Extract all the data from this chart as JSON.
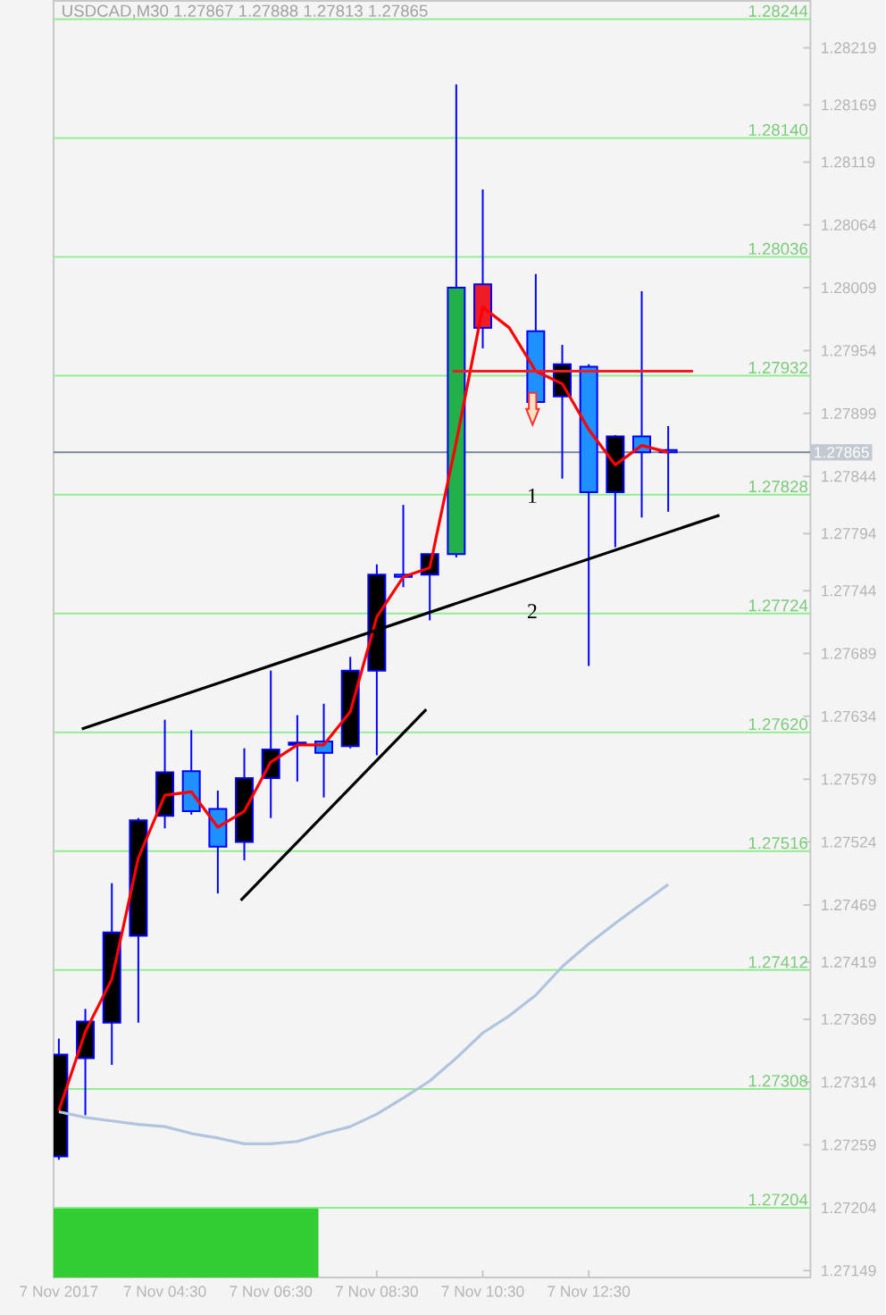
{
  "chart_data": {
    "type": "candlestick",
    "title": "USDCAD,M30  1.27867 1.27888 1.27813 1.27865",
    "x": [
      "2017-11-07T02:30",
      "2017-11-07T03:00",
      "2017-11-07T03:30",
      "2017-11-07T04:00",
      "2017-11-07T04:30",
      "2017-11-07T05:00",
      "2017-11-07T05:30",
      "2017-11-07T06:00",
      "2017-11-07T06:30",
      "2017-11-07T07:00",
      "2017-11-07T07:30",
      "2017-11-07T08:00",
      "2017-11-07T08:30",
      "2017-11-07T09:00",
      "2017-11-07T09:30",
      "2017-11-07T10:00",
      "2017-11-07T10:30",
      "2017-11-07T11:00",
      "2017-11-07T11:30",
      "2017-11-07T12:00",
      "2017-11-07T12:30",
      "2017-11-07T13:00",
      "2017-11-07T13:30",
      "2017-11-07T14:00"
    ],
    "ohlc": [
      [
        1.27249,
        1.27352,
        1.27246,
        1.27338
      ],
      [
        1.27335,
        1.27378,
        1.27285,
        1.27367
      ],
      [
        1.27366,
        1.27488,
        1.27329,
        1.27445
      ],
      [
        1.27442,
        1.27545,
        1.27366,
        1.27543
      ],
      [
        1.27547,
        1.27631,
        1.27536,
        1.27585
      ],
      [
        1.27586,
        1.27622,
        1.27548,
        1.27551
      ],
      [
        1.27553,
        1.27569,
        1.27479,
        1.2752
      ],
      [
        1.27524,
        1.27606,
        1.27508,
        1.2758
      ],
      [
        1.2758,
        1.27674,
        1.27545,
        1.27605
      ],
      [
        1.27609,
        1.27635,
        1.27577,
        1.27611
      ],
      [
        1.27612,
        1.27645,
        1.27563,
        1.27602
      ],
      [
        1.27608,
        1.27686,
        1.27606,
        1.27674
      ],
      [
        1.27674,
        1.27767,
        1.276,
        1.27758
      ],
      [
        1.27758,
        1.27819,
        1.27747,
        1.27756
      ],
      [
        1.27758,
        1.27776,
        1.27718,
        1.27776
      ],
      [
        1.27776,
        1.28187,
        1.27773,
        1.28009
      ],
      [
        1.28012,
        1.28095,
        1.27956,
        1.27974
      ],
      null,
      [
        1.27971,
        1.28021,
        1.27907,
        1.27909
      ],
      [
        1.27914,
        1.27959,
        1.27842,
        1.27942
      ],
      [
        1.2794,
        1.27942,
        1.27678,
        1.2783
      ],
      [
        1.2783,
        1.2788,
        1.27782,
        1.27879
      ],
      [
        1.27879,
        1.28006,
        1.27808,
        1.27865
      ],
      [
        1.27867,
        1.27888,
        1.27813,
        1.27865
      ]
    ],
    "colors": [
      "#000000",
      "#000000",
      "#000000",
      "#000000",
      "#000000",
      "#1e90ff",
      "#1e90ff",
      "#000000",
      "#000000",
      "#000000",
      "#1e90ff",
      "#000000",
      "#000000",
      "#1e90ff",
      "#000000",
      "#22b04a",
      "#ee1c24",
      "#000000",
      "#1e90ff",
      "#000000",
      "#1e90ff",
      "#000000",
      "#1e90ff",
      "#1e90ff"
    ],
    "series": [
      {
        "type": "line",
        "color": "#ff0000",
        "values": [
          1.27289,
          1.27358,
          1.27404,
          1.2751,
          1.27565,
          1.27568,
          1.27537,
          1.27551,
          1.27594,
          1.27609,
          1.27609,
          1.27638,
          1.27721,
          1.27756,
          1.27764,
          1.27874,
          1.27992,
          1.27974,
          1.27936,
          1.27925,
          1.27885,
          1.27854,
          1.27871,
          1.27865
        ]
      },
      {
        "type": "line",
        "color": "#b0c4de",
        "values": [
          1.27288,
          1.27283,
          1.2728,
          1.27277,
          1.27275,
          1.27269,
          1.27265,
          1.2726,
          1.2726,
          1.27262,
          1.27269,
          1.27275,
          1.27286,
          1.273,
          1.27315,
          1.27335,
          1.27357,
          1.27372,
          1.2739,
          1.27415,
          1.27435,
          1.27453,
          1.2747,
          1.27487
        ]
      },
      {
        "type": "line",
        "color": "#000000",
        "x": [
          "2017-11-07T02:56",
          "2017-11-07T14:58"
        ],
        "values": [
          1.27623,
          1.2781
        ]
      },
      {
        "type": "line",
        "color": "#000000",
        "x": [
          "2017-11-07T05:56",
          "2017-11-07T09:26"
        ],
        "values": [
          1.27473,
          1.2764
        ]
      },
      {
        "type": "line",
        "color": "#ee1c24",
        "x": [
          "2017-11-07T09:56",
          "2017-11-07T14:28"
        ],
        "values": [
          1.27936,
          1.27936
        ]
      }
    ],
    "xlim": [
      "2017-11-07T02:24",
      "2017-11-07T16:41"
    ],
    "ylim": [
      1.27143,
      1.2826
    ],
    "xticks": [
      {
        "value": "2017-11-07T02:30",
        "label": "7 Nov 2017"
      },
      {
        "value": "2017-11-07T04:30",
        "label": "7 Nov 04:30"
      },
      {
        "value": "2017-11-07T06:30",
        "label": "7 Nov 06:30"
      },
      {
        "value": "2017-11-07T08:30",
        "label": "7 Nov 08:30"
      },
      {
        "value": "2017-11-07T10:30",
        "label": "7 Nov 10:30"
      },
      {
        "value": "2017-11-07T12:30",
        "label": "7 Nov 12:30"
      }
    ],
    "yticks": [
      1.28219,
      1.28169,
      1.28119,
      1.28064,
      1.28009,
      1.27954,
      1.27899,
      1.27844,
      1.27794,
      1.27744,
      1.27689,
      1.27634,
      1.27579,
      1.27524,
      1.27469,
      1.27419,
      1.27369,
      1.27314,
      1.27259,
      1.27204,
      1.27149
    ],
    "ref_lines": [
      {
        "axis": "y",
        "value": 1.28244,
        "label": "1.28244",
        "color": "#90ee90"
      },
      {
        "axis": "y",
        "value": 1.2814,
        "label": "1.28140",
        "color": "#90ee90"
      },
      {
        "axis": "y",
        "value": 1.28036,
        "label": "1.28036",
        "color": "#90ee90"
      },
      {
        "axis": "y",
        "value": 1.27932,
        "label": "1.27932",
        "color": "#90ee90"
      },
      {
        "axis": "y",
        "value": 1.27828,
        "label": "1.27828",
        "color": "#90ee90"
      },
      {
        "axis": "y",
        "value": 1.27724,
        "label": "1.27724",
        "color": "#90ee90"
      },
      {
        "axis": "y",
        "value": 1.2762,
        "label": "1.27620",
        "color": "#90ee90"
      },
      {
        "axis": "y",
        "value": 1.27516,
        "label": "1.27516",
        "color": "#90ee90"
      },
      {
        "axis": "y",
        "value": 1.27412,
        "label": "1.27412",
        "color": "#90ee90"
      },
      {
        "axis": "y",
        "value": 1.27308,
        "label": "1.27308",
        "color": "#90ee90"
      },
      {
        "axis": "y",
        "value": 1.27204,
        "label": "1.27204",
        "color": "#90ee90"
      },
      {
        "axis": "y",
        "value": 1.27865,
        "label": "1.27865",
        "color": "#778899"
      }
    ],
    "annotations": [
      {
        "text": "1",
        "x": "2017-11-07T11:26",
        "y": 1.27827
      },
      {
        "text": "2",
        "x": "2017-11-07T11:26",
        "y": 1.27726
      }
    ]
  }
}
